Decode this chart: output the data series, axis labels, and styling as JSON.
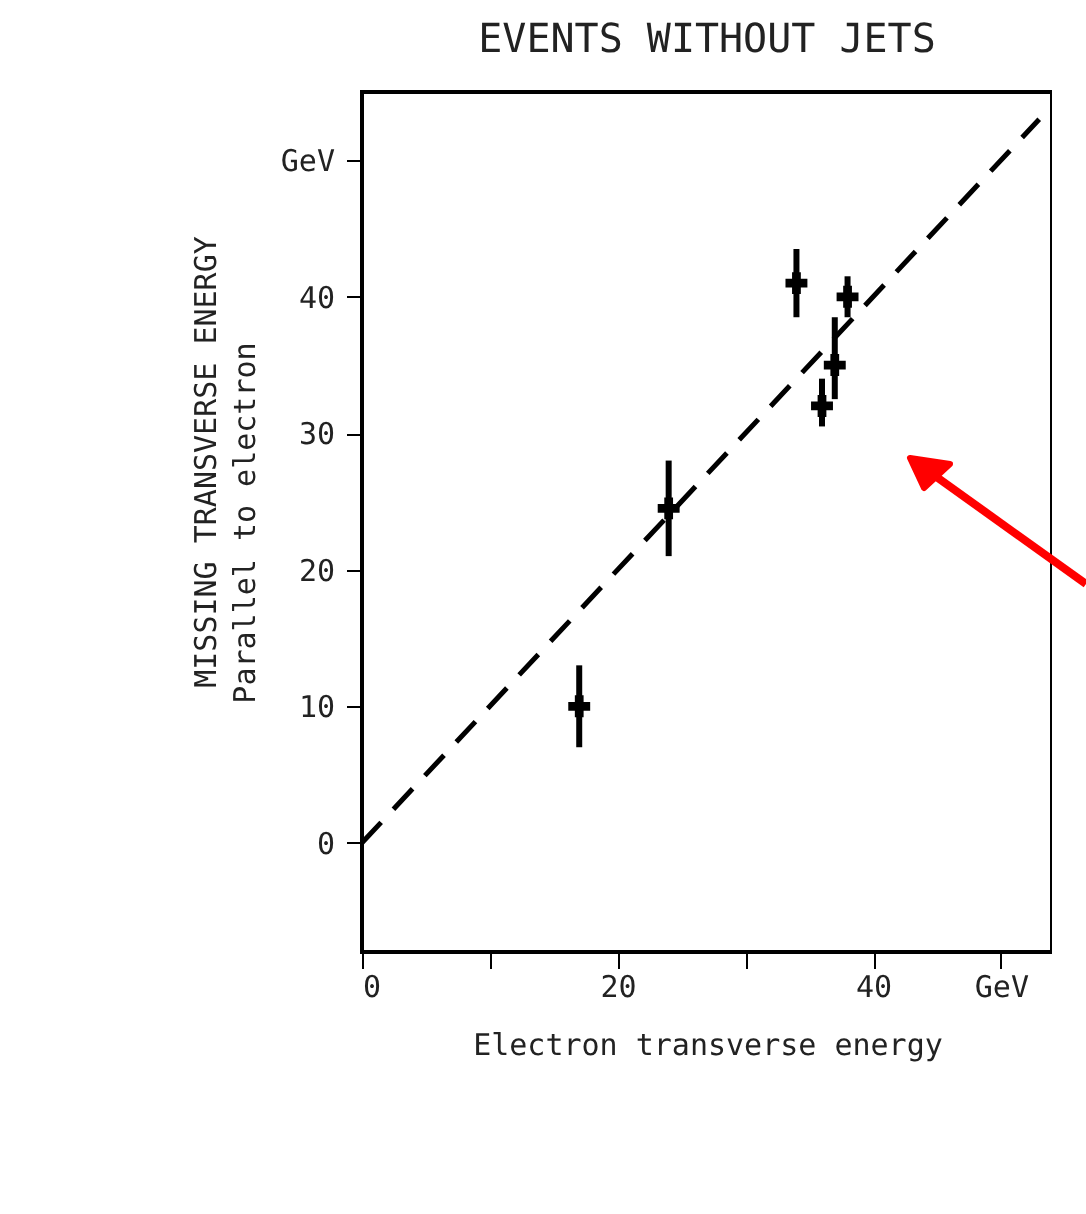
{
  "chart_data": {
    "type": "scatter",
    "title": "EVENTS WITHOUT JETS",
    "xlabel": "Electron transverse energy",
    "ylabel": "Parallel to electron",
    "annotations": [
      "MISSING TRANSVERSE ENERGY"
    ],
    "xlim": [
      0,
      54
    ],
    "ylim": [
      -8,
      55
    ],
    "xticks": [
      0,
      {
        "value": 10,
        "label": null
      },
      20,
      {
        "value": 30,
        "label": null
      },
      40,
      {
        "value": 50,
        "label": "GeV"
      }
    ],
    "yticks": [
      0,
      10,
      20,
      30,
      40,
      {
        "value": 50,
        "label": "GeV"
      }
    ],
    "grid": false,
    "marker": "cross",
    "series": [
      {
        "color": "#000000",
        "x": [
          17,
          24,
          34,
          38,
          37,
          36
        ],
        "values": [
          10,
          24.5,
          41,
          40,
          35,
          32
        ],
        "errors": [
          [
            7,
            13
          ],
          [
            21,
            28
          ],
          [
            38.5,
            43.5
          ],
          [
            38.5,
            41.5
          ],
          [
            32.5,
            38.5
          ],
          [
            30.5,
            34
          ]
        ]
      },
      {
        "type": "line",
        "color": "#000000",
        "line_style": "dashed",
        "marker": "none",
        "x": [
          0,
          53
        ],
        "values": [
          0,
          53
        ]
      }
    ]
  }
}
